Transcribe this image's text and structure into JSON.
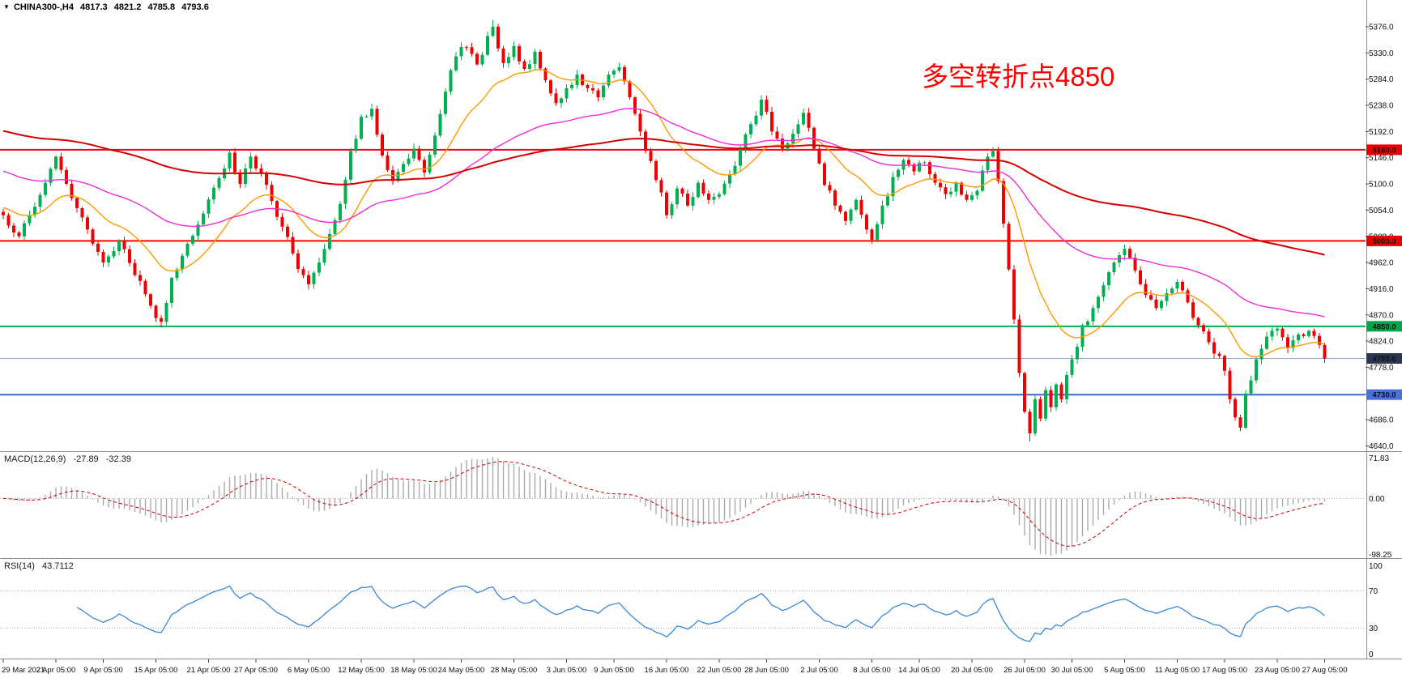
{
  "window": {
    "title_symbol": "CHINA300-,H4",
    "quote": {
      "open": "4817.3",
      "high": "4821.2",
      "low": "4785.8",
      "close": "4793.6"
    }
  },
  "annotation": {
    "text": "多空转折点4850",
    "color": "#FF0000"
  },
  "chart_data": {
    "type": "candlestick",
    "symbol": "CHINA300-",
    "timeframe": "H4",
    "last_quote": {
      "open": 4817.3,
      "high": 4821.2,
      "low": 4785.8,
      "close": 4793.6
    },
    "y_axis": {
      "max": 5376,
      "min": 4640,
      "step": 46,
      "ticks": [
        "5376.0",
        "5330.0",
        "5284.0",
        "5238.0",
        "5192.0",
        "5146.0",
        "5100.0",
        "5054.0",
        "5008.0",
        "4962.0",
        "4916.0",
        "4870.0",
        "4824.0",
        "4778.0",
        "4732.0",
        "4686.0",
        "4640.0"
      ]
    },
    "x_axis": {
      "labels": [
        "29 Mar 2021",
        "2 Apr 05:00",
        "9 Apr 05:00",
        "15 Apr 05:00",
        "21 Apr 05:00",
        "27 Apr 05:00",
        "6 May 05:00",
        "12 May 05:00",
        "18 May 05:00",
        "24 May 05:00",
        "28 May 05:00",
        "3 Jun 05:00",
        "9 Jun 05:00",
        "16 Jun 05:00",
        "22 Jun 05:00",
        "28 Jun 05:00",
        "2 Jul 05:00",
        "8 Jul 05:00",
        "14 Jul 05:00",
        "20 Jul 05:00",
        "26 Jul 05:00",
        "30 Jul 05:00",
        "5 Aug 05:00",
        "11 Aug 05:00",
        "17 Aug 05:00",
        "23 Aug 05:00",
        "27 Aug 05:00"
      ],
      "label_candle_indices": [
        0,
        10,
        19,
        29,
        39,
        48,
        58,
        68,
        78,
        87,
        97,
        107,
        116,
        126,
        136,
        145,
        155,
        165,
        174,
        184,
        194,
        203,
        213,
        223,
        232,
        242,
        251
      ]
    },
    "candle_count": 252,
    "candle_colors": {
      "up": "#00B050",
      "down": "#F00000"
    },
    "price_path_anchors": [
      [
        0,
        5045
      ],
      [
        3,
        5008
      ],
      [
        6,
        5060
      ],
      [
        10,
        5148
      ],
      [
        13,
        5075
      ],
      [
        16,
        5020
      ],
      [
        19,
        4962
      ],
      [
        22,
        5000
      ],
      [
        25,
        4940
      ],
      [
        28,
        4886
      ],
      [
        30,
        4858
      ],
      [
        32,
        4935
      ],
      [
        35,
        4995
      ],
      [
        38,
        5048
      ],
      [
        41,
        5110
      ],
      [
        43,
        5155
      ],
      [
        45,
        5100
      ],
      [
        47,
        5148
      ],
      [
        49,
        5118
      ],
      [
        51,
        5070
      ],
      [
        53,
        5025
      ],
      [
        55,
        4978
      ],
      [
        57,
        4940
      ],
      [
        58,
        4924
      ],
      [
        60,
        4962
      ],
      [
        62,
        5012
      ],
      [
        64,
        5065
      ],
      [
        66,
        5158
      ],
      [
        68,
        5218
      ],
      [
        70,
        5232
      ],
      [
        72,
        5150
      ],
      [
        74,
        5105
      ],
      [
        76,
        5135
      ],
      [
        78,
        5162
      ],
      [
        80,
        5120
      ],
      [
        82,
        5185
      ],
      [
        84,
        5262
      ],
      [
        86,
        5324
      ],
      [
        88,
        5340
      ],
      [
        90,
        5310
      ],
      [
        92,
        5360
      ],
      [
        93,
        5376
      ],
      [
        95,
        5312
      ],
      [
        97,
        5342
      ],
      [
        99,
        5302
      ],
      [
        101,
        5332
      ],
      [
        103,
        5282
      ],
      [
        105,
        5242
      ],
      [
        107,
        5268
      ],
      [
        109,
        5292
      ],
      [
        111,
        5268
      ],
      [
        113,
        5252
      ],
      [
        115,
        5292
      ],
      [
        117,
        5305
      ],
      [
        119,
        5252
      ],
      [
        121,
        5192
      ],
      [
        123,
        5140
      ],
      [
        125,
        5085
      ],
      [
        126,
        5045
      ],
      [
        128,
        5092
      ],
      [
        130,
        5062
      ],
      [
        132,
        5102
      ],
      [
        134,
        5072
      ],
      [
        136,
        5082
      ],
      [
        139,
        5132
      ],
      [
        142,
        5205
      ],
      [
        144,
        5248
      ],
      [
        146,
        5192
      ],
      [
        148,
        5162
      ],
      [
        150,
        5188
      ],
      [
        152,
        5225
      ],
      [
        154,
        5162
      ],
      [
        156,
        5098
      ],
      [
        158,
        5062
      ],
      [
        160,
        5035
      ],
      [
        162,
        5072
      ],
      [
        164,
        5020
      ],
      [
        165,
        5002
      ],
      [
        167,
        5062
      ],
      [
        169,
        5112
      ],
      [
        171,
        5142
      ],
      [
        173,
        5122
      ],
      [
        175,
        5138
      ],
      [
        177,
        5102
      ],
      [
        179,
        5082
      ],
      [
        181,
        5102
      ],
      [
        183,
        5072
      ],
      [
        185,
        5088
      ],
      [
        187,
        5148
      ],
      [
        188,
        5158
      ],
      [
        189,
        5105
      ],
      [
        190,
        5030
      ],
      [
        191,
        4950
      ],
      [
        192,
        4862
      ],
      [
        193,
        4768
      ],
      [
        194,
        4700
      ],
      [
        195,
        4662
      ],
      [
        196,
        4722
      ],
      [
        197,
        4688
      ],
      [
        198,
        4738
      ],
      [
        199,
        4708
      ],
      [
        200,
        4748
      ],
      [
        201,
        4722
      ],
      [
        203,
        4792
      ],
      [
        205,
        4852
      ],
      [
        207,
        4882
      ],
      [
        209,
        4922
      ],
      [
        211,
        4962
      ],
      [
        213,
        4986
      ],
      [
        215,
        4948
      ],
      [
        217,
        4905
      ],
      [
        219,
        4882
      ],
      [
        221,
        4908
      ],
      [
        223,
        4928
      ],
      [
        225,
        4892
      ],
      [
        227,
        4852
      ],
      [
        229,
        4822
      ],
      [
        231,
        4798
      ],
      [
        232,
        4772
      ],
      [
        233,
        4722
      ],
      [
        234,
        4690
      ],
      [
        235,
        4672
      ],
      [
        236,
        4732
      ],
      [
        238,
        4792
      ],
      [
        240,
        4832
      ],
      [
        242,
        4846
      ],
      [
        244,
        4812
      ],
      [
        246,
        4836
      ],
      [
        248,
        4842
      ],
      [
        250,
        4817.3
      ],
      [
        251,
        4793.6
      ]
    ],
    "wick_extremes": [
      {
        "index": 93,
        "high": 5388
      },
      {
        "index": 30,
        "low": 4848
      },
      {
        "index": 58,
        "low": 4915
      },
      {
        "index": 70,
        "high": 5241
      },
      {
        "index": 144,
        "high": 5256
      },
      {
        "index": 195,
        "low": 4648
      },
      {
        "index": 235,
        "low": 4666
      }
    ],
    "horizontal_levels": [
      {
        "value": 5160.0,
        "label": "5160.0",
        "color": "#FF0000",
        "badge": "#E80000",
        "width": 2
      },
      {
        "value": 5000.0,
        "label": "5000.0",
        "color": "#FF0000",
        "badge": "#E80000",
        "width": 2
      },
      {
        "value": 4850.0,
        "label": "4850.0",
        "color": "#00B050",
        "badge": "#00A64C",
        "width": 2
      },
      {
        "value": 4730.0,
        "label": "4730.0",
        "color": "#3E66C4",
        "badge": "#4A6EDB",
        "width": 2
      }
    ],
    "current_price_line": {
      "value": 4793.6,
      "label": "4793.6",
      "line_color": "#8FA8C8",
      "badge": "#2A3550"
    },
    "moving_averages": [
      {
        "period": 18,
        "color": "#FF9900",
        "width": 1.4,
        "seed": 5060
      },
      {
        "period": 60,
        "color": "#F02DD8",
        "width": 1.4,
        "seed": 5125
      },
      {
        "period": 160,
        "color": "#D40000",
        "width": 2,
        "seed": 5195
      }
    ],
    "indicators": {
      "macd": {
        "label": "MACD(12,26,9)",
        "fast": 12,
        "slow": 26,
        "signal": 9,
        "values": [
          "-27.89",
          "-32.39"
        ],
        "scale_labels": [
          "71.83",
          "0.00",
          "-98.25"
        ],
        "scale_max": 71.83,
        "scale_min": -98.25,
        "histogram_color": "#ABABAB",
        "signal_color": "#CC0000"
      },
      "rsi": {
        "label": "RSI(14)",
        "period": 14,
        "value": "43.7112",
        "levels": [
          70,
          30
        ],
        "scale_labels": [
          "100",
          "70",
          "30",
          "0"
        ],
        "line_color": "#3A87D9"
      }
    },
    "render_seed": 1337,
    "jitter": 9
  }
}
